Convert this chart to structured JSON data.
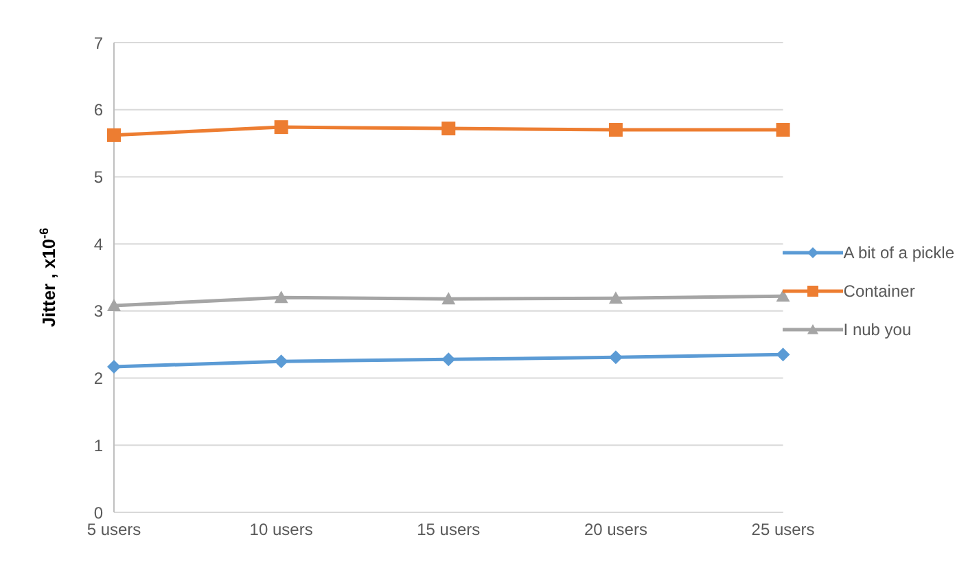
{
  "chart_data": {
    "type": "line",
    "ylabel": "Jitter , x10$^{-6}$",
    "categories": [
      "5 users",
      "10 users",
      "15 users",
      "20 users",
      "25 users"
    ],
    "series": [
      {
        "name": "A bit of a pickle",
        "color": "#5b9bd5",
        "marker": "diamond",
        "values": [
          2.17,
          2.25,
          2.28,
          2.31,
          2.35
        ]
      },
      {
        "name": "Container",
        "color": "#ed7d31",
        "marker": "square",
        "values": [
          5.62,
          5.74,
          5.72,
          5.7,
          5.7
        ]
      },
      {
        "name": "I nub you",
        "color": "#a5a5a5",
        "marker": "triangle",
        "values": [
          3.08,
          3.2,
          3.18,
          3.19,
          3.22
        ]
      }
    ],
    "ylim": [
      0,
      7
    ],
    "yticks": [
      0,
      1,
      2,
      3,
      4,
      5,
      6,
      7
    ],
    "grid": "y",
    "legend": "right"
  }
}
